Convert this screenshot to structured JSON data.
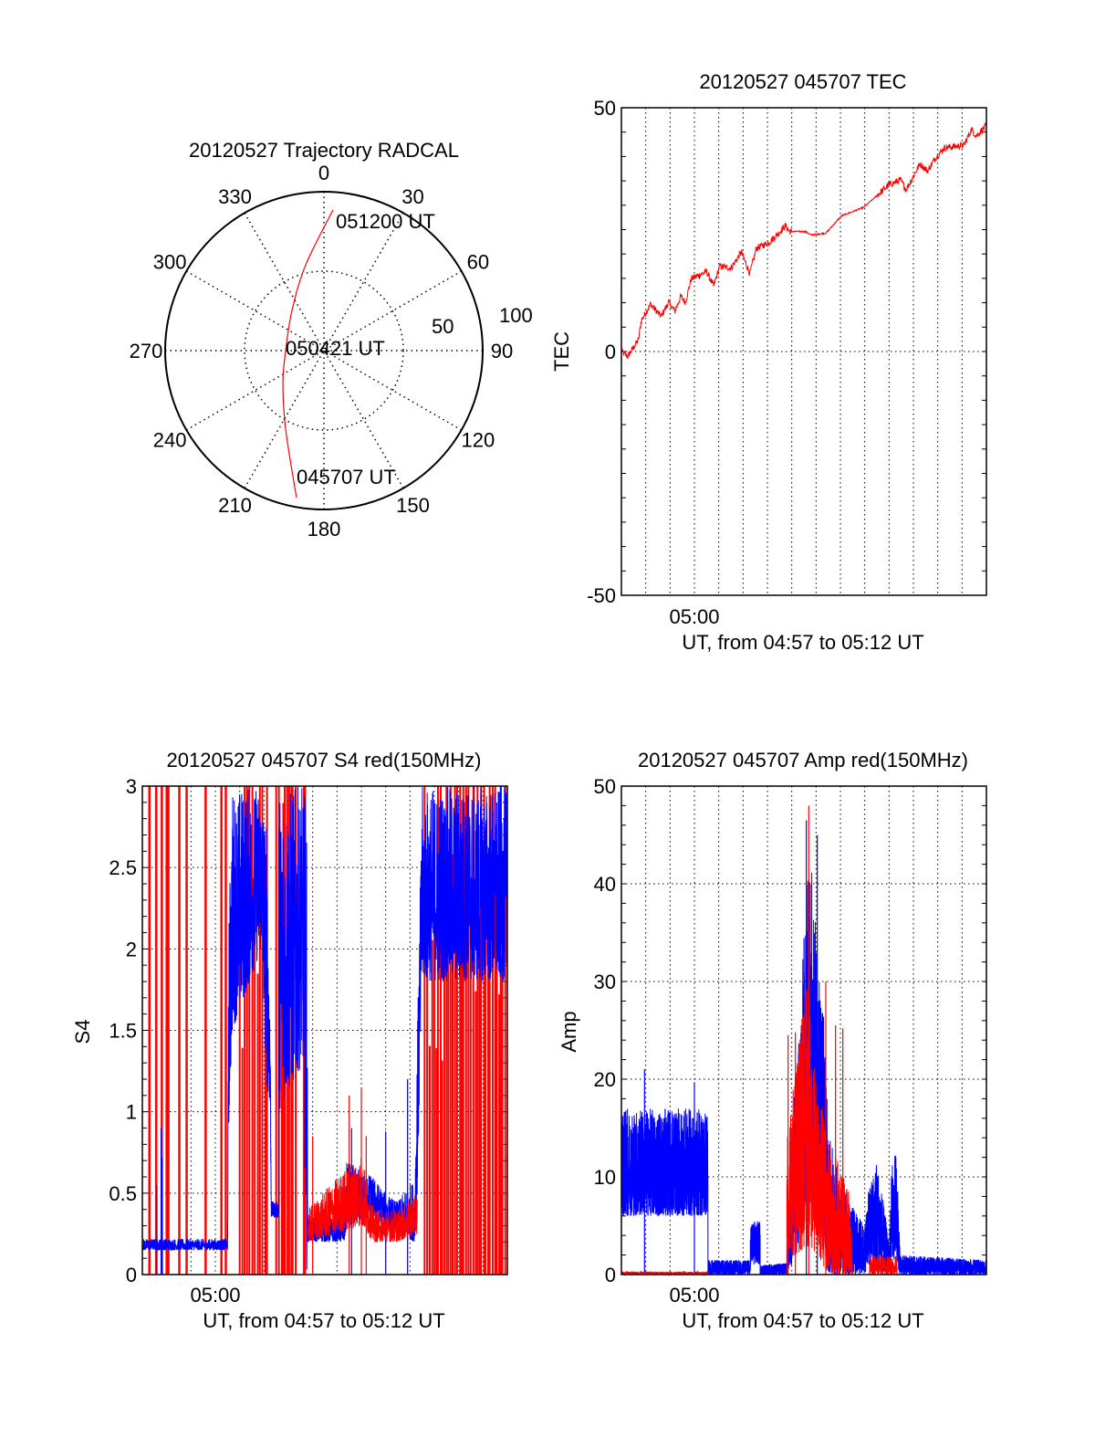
{
  "chart_data": [
    {
      "type": "polar",
      "title": "20120527 Trajectory RADCAL",
      "angle_labels": [
        "0",
        "30",
        "60",
        "90",
        "120",
        "150",
        "180",
        "210",
        "240",
        "270",
        "300",
        "330"
      ],
      "radial_labels": [
        "50",
        "100"
      ],
      "rlim": [
        0,
        100
      ],
      "grid": true,
      "trajectory": {
        "color": "#ff0000",
        "points_az_r": [
          [
            190.6,
            94.1
          ],
          [
            206,
            55
          ],
          [
            231.3,
            33.1
          ],
          [
            270,
            24.1
          ],
          [
            321.5,
            32.3
          ],
          [
            348,
            55.2
          ],
          [
            3.7,
            88.7
          ]
        ]
      },
      "annotations": {
        "start": "045707 UT",
        "middle": "050421 UT",
        "end": "051200 UT"
      }
    },
    {
      "type": "line",
      "title": "20120527 045707 TEC",
      "xlabel": "UT, from 04:57 to 05:12 UT",
      "ylabel": "TEC",
      "x_unit": "minutes after 04:57",
      "xlim": [
        0,
        15
      ],
      "ylim": [
        -50,
        50
      ],
      "x_tick_labels": [
        {
          "x": 3,
          "label": "05:00"
        }
      ],
      "y_tick_labels": [
        "-50",
        "0",
        "50"
      ],
      "grid": true,
      "series": [
        {
          "name": "TEC",
          "color": "#ff0000",
          "x": [
            0,
            0.26,
            0.7,
            0.82,
            1.2,
            1.63,
            1.94,
            2.2,
            2.44,
            2.63,
            2.87,
            3.5,
            3.79,
            4.04,
            4.5,
            4.93,
            5.28,
            5.55,
            6.05,
            6.43,
            6.74,
            6.92,
            7.55,
            7.8,
            8.41,
            9.04,
            9.97,
            10.97,
            11.47,
            11.7,
            12.27,
            12.58,
            12.89,
            13.27,
            14.08,
            14.39,
            14.58,
            15
          ],
          "y": [
            0,
            -1,
            2.4,
            6.4,
            9.7,
            7.2,
            10.1,
            8.3,
            11.3,
            10.1,
            14.9,
            16.4,
            13.4,
            17.5,
            17.1,
            20.4,
            16,
            21.2,
            22.3,
            24.1,
            25.8,
            24.6,
            24.6,
            23.9,
            24.3,
            27.8,
            29.6,
            34.1,
            35.2,
            33.2,
            38.5,
            37,
            39.6,
            41.8,
            42.3,
            45.6,
            44.2,
            46.4
          ]
        }
      ]
    },
    {
      "type": "line",
      "title": "20120527 045707 S4 red(150MHz)",
      "xlabel": "UT, from 04:57 to 05:12 UT",
      "ylabel": "S4",
      "x_unit": "minutes after 04:57",
      "xlim": [
        0,
        15
      ],
      "ylim": [
        0,
        3
      ],
      "x_tick_labels": [
        {
          "x": 3,
          "label": "05:00"
        }
      ],
      "y_tick_labels": [
        "0",
        "0.5",
        "1",
        "1.5",
        "2",
        "2.5",
        "3"
      ],
      "grid": true,
      "series": [
        {
          "name": "red",
          "color": "#ff0000",
          "envelope_t_lo_hi": [
            [
              6.8,
              0.2,
              0.4
            ],
            [
              8.0,
              0.25,
              0.6
            ],
            [
              9.0,
              0.3,
              0.75
            ],
            [
              9.5,
              0.2,
              0.4
            ],
            [
              10.5,
              0.2,
              0.4
            ],
            [
              11.3,
              0.25,
              0.5
            ]
          ],
          "full_spikes": [
            0.29,
            0.57,
            0.8,
            1.0,
            1.07,
            1.52,
            1.82,
            2.6,
            3.25,
            3.43,
            6.65,
            6.68
          ],
          "dense_spike_bands": [
            [
              4.0,
              5.2
            ],
            [
              5.5,
              6.4
            ],
            [
              11.6,
              15
            ]
          ],
          "peaks": [
            [
              7.0,
              0.85
            ],
            [
              8.5,
              1.1
            ],
            [
              9.0,
              1.15
            ],
            [
              9.2,
              0.85
            ]
          ]
        },
        {
          "name": "blue",
          "color": "#0000ff",
          "envelope_t_lo_hi": [
            [
              0,
              0.15,
              0.22
            ],
            [
              3.5,
              0.15,
              0.22
            ],
            [
              3.55,
              0.9,
              2.2
            ],
            [
              3.7,
              1.5,
              3
            ],
            [
              4.9,
              2,
              3
            ],
            [
              5.1,
              1.2,
              2.8
            ],
            [
              5.25,
              1,
              1.7
            ],
            [
              5.3,
              0.35,
              0.45
            ],
            [
              5.6,
              0.35,
              0.45
            ],
            [
              5.6,
              1,
              3
            ],
            [
              6.6,
              1.3,
              3
            ],
            [
              6.75,
              0,
              3
            ],
            [
              6.8,
              0.2,
              0.35
            ],
            [
              8.3,
              0.2,
              0.35
            ],
            [
              8.4,
              0.3,
              0.7
            ],
            [
              9.5,
              0.35,
              0.6
            ],
            [
              10.0,
              0.3,
              0.5
            ],
            [
              10.5,
              0.25,
              0.45
            ],
            [
              11.2,
              0.2,
              0.6
            ],
            [
              11.3,
              0.5,
              1.5
            ],
            [
              11.5,
              1.8,
              3
            ],
            [
              15,
              1.8,
              3
            ]
          ],
          "peaks": [
            [
              0.6,
              0.55
            ],
            [
              0.77,
              0.9
            ],
            [
              0.82,
              0.72
            ],
            [
              8.6,
              0.9
            ],
            [
              10.0,
              0.88
            ],
            [
              10.9,
              1.2
            ]
          ]
        }
      ]
    },
    {
      "type": "line",
      "title": "20120527 045707 Amp red(150MHz)",
      "xlabel": "UT, from 04:57 to 05:12 UT",
      "ylabel": "Amp",
      "x_unit": "minutes after 04:57",
      "xlim": [
        0,
        15
      ],
      "ylim": [
        0,
        50
      ],
      "x_tick_labels": [
        {
          "x": 3,
          "label": "05:00"
        }
      ],
      "y_tick_labels": [
        "0",
        "10",
        "20",
        "30",
        "40",
        "50"
      ],
      "grid": true,
      "series": [
        {
          "name": "red",
          "color": "#ff0000",
          "envelope_t_lo_hi": [
            [
              0,
              0,
              0.3
            ],
            [
              3.55,
              0,
              0.3
            ],
            [
              3.56,
              0,
              0
            ],
            [
              6.8,
              0,
              0
            ],
            [
              6.8,
              2,
              15
            ],
            [
              7.2,
              2,
              22
            ],
            [
              7.6,
              3,
              30
            ],
            [
              8.0,
              2,
              20
            ],
            [
              8.5,
              0,
              15
            ],
            [
              9.4,
              0,
              8
            ],
            [
              9.5,
              0,
              0
            ],
            [
              10.2,
              0,
              0
            ],
            [
              10.2,
              0,
              2
            ],
            [
              11.3,
              0,
              2
            ],
            [
              11.35,
              0,
              0
            ],
            [
              15,
              0,
              0
            ]
          ],
          "peaks": [
            [
              6.85,
              24.5
            ],
            [
              7.15,
              24.8
            ],
            [
              7.7,
              48
            ],
            [
              8.4,
              30
            ],
            [
              8.8,
              25.5
            ],
            [
              9.1,
              25.2
            ]
          ]
        },
        {
          "name": "blue",
          "color": "#0000ff",
          "envelope_t_lo_hi": [
            [
              0,
              6,
              17
            ],
            [
              3.55,
              6,
              17
            ],
            [
              3.56,
              0,
              1.5
            ],
            [
              5.3,
              0,
              1.5
            ],
            [
              5.3,
              1,
              5.5
            ],
            [
              5.7,
              1,
              5.5
            ],
            [
              5.7,
              0,
              1
            ],
            [
              6.8,
              0,
              1.2
            ],
            [
              7.0,
              1,
              15
            ],
            [
              7.3,
              3,
              25
            ],
            [
              7.6,
              8,
              40
            ],
            [
              7.8,
              10,
              45
            ],
            [
              8.0,
              8,
              35
            ],
            [
              8.3,
              4,
              28
            ],
            [
              8.5,
              0,
              15
            ],
            [
              9.0,
              0,
              10
            ],
            [
              9.5,
              0,
              7
            ],
            [
              10.0,
              0,
              5
            ],
            [
              10.1,
              1,
              8
            ],
            [
              10.5,
              1,
              12
            ],
            [
              10.85,
              0,
              6
            ],
            [
              11.0,
              0,
              3
            ],
            [
              11.1,
              2,
              11
            ],
            [
              11.3,
              1,
              13
            ],
            [
              11.45,
              0,
              2
            ],
            [
              15,
              0,
              1.5
            ]
          ],
          "peaks": [
            [
              0.95,
              21
            ],
            [
              3.0,
              19.7
            ],
            [
              7.6,
              46.5
            ],
            [
              8.05,
              45
            ],
            [
              0.48,
              0
            ],
            [
              0.67,
              0
            ]
          ]
        }
      ]
    }
  ]
}
